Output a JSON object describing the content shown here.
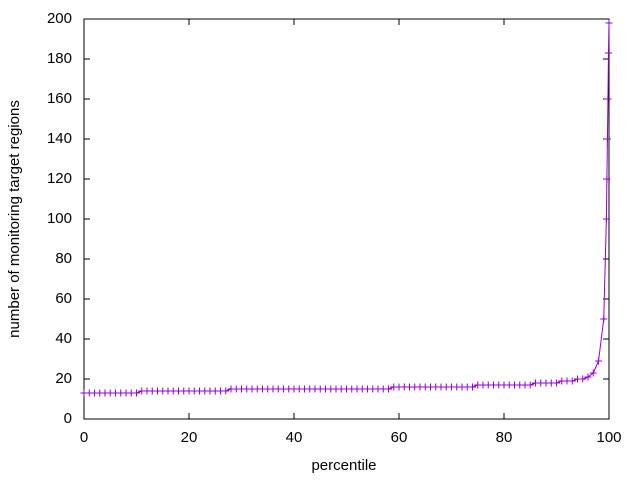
{
  "chart_data": {
    "type": "line",
    "xlabel": "percentile",
    "ylabel": "number of monitoring target regions",
    "x": [
      0,
      1,
      2,
      3,
      4,
      5,
      6,
      7,
      8,
      9,
      10,
      11,
      12,
      13,
      14,
      15,
      16,
      17,
      18,
      19,
      20,
      21,
      22,
      23,
      24,
      25,
      26,
      27,
      28,
      29,
      30,
      31,
      32,
      33,
      34,
      35,
      36,
      37,
      38,
      39,
      40,
      41,
      42,
      43,
      44,
      45,
      46,
      47,
      48,
      49,
      50,
      51,
      52,
      53,
      54,
      55,
      56,
      57,
      58,
      59,
      60,
      61,
      62,
      63,
      64,
      65,
      66,
      67,
      68,
      69,
      70,
      71,
      72,
      73,
      74,
      75,
      76,
      77,
      78,
      79,
      80,
      81,
      82,
      83,
      84,
      85,
      86,
      87,
      88,
      89,
      90,
      91,
      92,
      93,
      94,
      95,
      96,
      97,
      98,
      99,
      99.5,
      99.6,
      99.7,
      99.8,
      99.9,
      100
    ],
    "series": [
      {
        "color": "#9400d3",
        "values": [
          13,
          13,
          13,
          13,
          13,
          13,
          13,
          13,
          13,
          13,
          13,
          14,
          14,
          14,
          14,
          14,
          14,
          14,
          14,
          14,
          14,
          14,
          14,
          14,
          14,
          14,
          14,
          14,
          15,
          15,
          15,
          15,
          15,
          15,
          15,
          15,
          15,
          15,
          15,
          15,
          15,
          15,
          15,
          15,
          15,
          15,
          15,
          15,
          15,
          15,
          15,
          15,
          15,
          15,
          15,
          15,
          15,
          15,
          15,
          16,
          16,
          16,
          16,
          16,
          16,
          16,
          16,
          16,
          16,
          16,
          16,
          16,
          16,
          16,
          16,
          17,
          17,
          17,
          17,
          17,
          17,
          17,
          17,
          17,
          17,
          17,
          18,
          18,
          18,
          18,
          18,
          19,
          19,
          19,
          20,
          20,
          21,
          23,
          29,
          50,
          100,
          120,
          140,
          160,
          183,
          198
        ]
      }
    ],
    "xlim": [
      0,
      100
    ],
    "xticks": [
      0,
      20,
      40,
      60,
      80,
      100
    ],
    "ylim": [
      0,
      200
    ],
    "yticks": [
      0,
      20,
      40,
      60,
      80,
      100,
      120,
      140,
      160,
      180,
      200
    ],
    "grid": false
  }
}
